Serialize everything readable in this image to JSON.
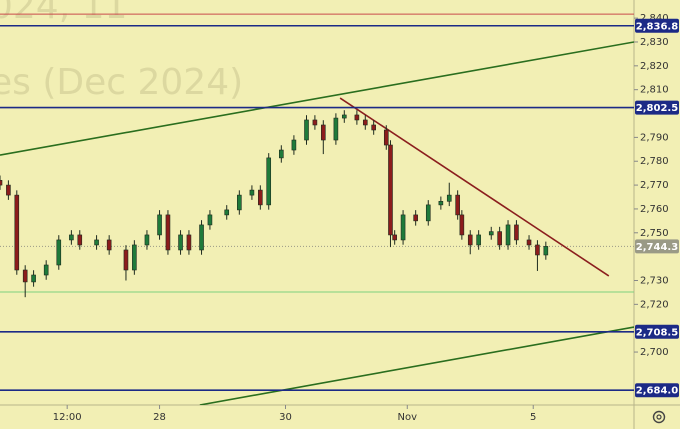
{
  "chart_data": {
    "type": "candlestick",
    "watermark": [
      "024, 11",
      "es (Dec 2024)"
    ],
    "x": [
      0,
      2,
      4,
      6,
      8,
      11,
      14,
      17,
      19,
      23,
      26,
      30,
      32,
      35,
      38,
      40,
      43,
      45,
      48,
      50,
      54,
      57,
      60,
      62,
      64,
      67,
      70,
      73,
      75,
      77,
      80,
      82,
      85,
      87,
      89,
      92,
      93,
      94,
      96,
      99,
      102,
      105,
      107,
      109,
      110,
      112,
      114,
      117,
      119,
      121,
      123,
      126,
      128,
      130
    ],
    "open": [
      2772.0,
      2770.0,
      2765.8,
      2734.4,
      2729.4,
      2732.3,
      2736.5,
      2747.0,
      2749.1,
      2744.9,
      2747.0,
      2742.8,
      2734.4,
      2744.9,
      2749.1,
      2757.5,
      2742.8,
      2749.1,
      2742.8,
      2753.3,
      2757.5,
      2759.6,
      2765.8,
      2767.9,
      2761.7,
      2781.4,
      2784.7,
      2788.9,
      2797.3,
      2795.2,
      2788.9,
      2798.1,
      2799.4,
      2797.3,
      2795.2,
      2793.1,
      2786.8,
      2749.1,
      2747.0,
      2757.5,
      2755.0,
      2761.7,
      2763.2,
      2765.8,
      2757.5,
      2749.1,
      2744.9,
      2749.1,
      2750.5,
      2744.9,
      2753.3,
      2747.0,
      2744.9,
      2740.7
    ],
    "high": [
      2774.0,
      2772.0,
      2767.8,
      2736.4,
      2734.3,
      2738.5,
      2749.0,
      2751.1,
      2751.1,
      2749.0,
      2749.0,
      2744.8,
      2746.9,
      2751.1,
      2759.5,
      2759.5,
      2751.1,
      2751.1,
      2755.3,
      2759.5,
      2761.6,
      2767.8,
      2769.9,
      2769.9,
      2783.4,
      2786.7,
      2790.9,
      2799.3,
      2799.3,
      2797.2,
      2800.1,
      2801.4,
      2801.4,
      2799.3,
      2797.2,
      2795.1,
      2788.8,
      2751.1,
      2759.5,
      2759.5,
      2763.7,
      2765.2,
      2771.0,
      2767.8,
      2759.5,
      2751.1,
      2751.1,
      2752.5,
      2752.5,
      2755.3,
      2755.3,
      2749.0,
      2746.9,
      2746.3
    ],
    "low": [
      2768.0,
      2763.8,
      2732.4,
      2723.0,
      2727.4,
      2730.3,
      2734.5,
      2745.0,
      2742.9,
      2742.9,
      2740.8,
      2730.0,
      2732.4,
      2742.9,
      2747.1,
      2740.8,
      2740.8,
      2740.8,
      2740.8,
      2751.3,
      2755.5,
      2757.6,
      2763.8,
      2759.7,
      2759.7,
      2779.4,
      2782.7,
      2786.9,
      2793.2,
      2783.0,
      2786.9,
      2796.1,
      2795.3,
      2793.2,
      2791.1,
      2784.8,
      2744.0,
      2745.0,
      2745.0,
      2753.0,
      2753.0,
      2759.7,
      2761.2,
      2755.5,
      2747.1,
      2741.0,
      2742.9,
      2747.1,
      2742.9,
      2742.9,
      2745.0,
      2742.9,
      2734.0,
      2738.7
    ],
    "close": [
      2770.0,
      2765.8,
      2734.4,
      2729.4,
      2732.3,
      2736.5,
      2747.0,
      2749.1,
      2744.9,
      2747.0,
      2742.8,
      2734.4,
      2744.9,
      2749.1,
      2757.5,
      2742.8,
      2749.1,
      2742.8,
      2753.3,
      2757.5,
      2759.6,
      2765.8,
      2767.9,
      2761.7,
      2781.4,
      2784.7,
      2788.9,
      2797.3,
      2795.2,
      2788.9,
      2798.1,
      2799.4,
      2797.3,
      2795.2,
      2793.1,
      2786.8,
      2749.1,
      2747.0,
      2757.5,
      2755.0,
      2761.7,
      2763.2,
      2765.8,
      2757.5,
      2749.1,
      2744.9,
      2749.1,
      2750.5,
      2744.9,
      2753.3,
      2747.0,
      2744.9,
      2740.7,
      2744.3
    ],
    "up_color": "#1f7a3a",
    "down_color": "#8c1c1c",
    "xlim": [
      0,
      151
    ],
    "xticks": [
      {
        "value": 16,
        "label": "12:00"
      },
      {
        "value": 38,
        "label": "28"
      },
      {
        "value": 68,
        "label": "30"
      },
      {
        "value": 97,
        "label": "Nov"
      },
      {
        "value": 127,
        "label": "5"
      }
    ],
    "ylim": [
      2677.8,
      2847.6
    ],
    "yticks": [
      {
        "value": 2840,
        "label": "2,840"
      },
      {
        "value": 2830,
        "label": "2,830"
      },
      {
        "value": 2820,
        "label": "2,820"
      },
      {
        "value": 2810,
        "label": "2,810"
      },
      {
        "value": 2790,
        "label": "2,790"
      },
      {
        "value": 2780,
        "label": "2,780"
      },
      {
        "value": 2770,
        "label": "2,770"
      },
      {
        "value": 2760,
        "label": "2,760"
      },
      {
        "value": 2750,
        "label": "2,750"
      },
      {
        "value": 2730,
        "label": "2,730"
      },
      {
        "value": 2720,
        "label": "2,720"
      },
      {
        "value": 2700,
        "label": "2,700"
      }
    ],
    "levels": [
      {
        "value": 2836.8,
        "label": "2,836.8"
      },
      {
        "value": 2802.5,
        "label": "2,802.5"
      },
      {
        "value": 2708.5,
        "label": "2,708.5"
      },
      {
        "value": 2684.0,
        "label": "2,684.0"
      }
    ],
    "level_color": "#1c2a86",
    "plain_lines": [
      {
        "value": 2841.7,
        "color": "#c84a4a"
      },
      {
        "value": 2725.2,
        "color": "#7ed07e"
      }
    ],
    "last": {
      "value": 2744.3,
      "label": "2,744.3"
    },
    "last_color": "#9a9a86",
    "trend_lines": [
      {
        "x": [
          0,
          151
        ],
        "y": [
          2782.6,
          2830.0
        ],
        "color": "#2a6e1e"
      },
      {
        "x": [
          47.6,
          151
        ],
        "y": [
          2677.8,
          2710.5
        ],
        "color": "#2a6e1e"
      },
      {
        "x": [
          81,
          145
        ],
        "y": [
          2806.5,
          2731.9
        ],
        "color": "#8b1e1e"
      }
    ]
  }
}
